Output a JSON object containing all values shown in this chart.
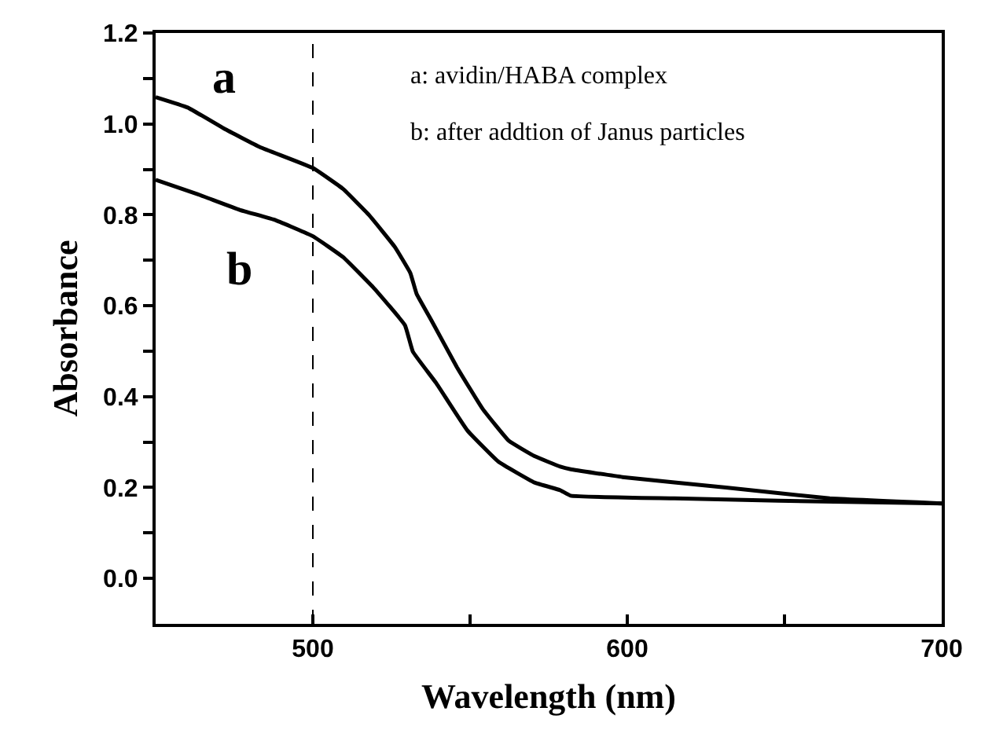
{
  "chart_data": {
    "type": "line",
    "xlabel": "Wavelength (nm)",
    "ylabel": "Absorbance",
    "xlim": [
      450,
      700
    ],
    "ylim": [
      -0.1,
      1.2
    ],
    "xticks": [
      {
        "value": 450,
        "label": null
      },
      500,
      {
        "value": 550,
        "label": null
      },
      600,
      {
        "value": 650,
        "label": null
      },
      700
    ],
    "yticks": [
      {
        "value": 0,
        "label": "0.0"
      },
      {
        "value": 0.1,
        "label": null
      },
      {
        "value": 0.2,
        "label": "0.2"
      },
      {
        "value": 0.3,
        "label": null
      },
      {
        "value": 0.4,
        "label": "0.4"
      },
      {
        "value": 0.5,
        "label": null
      },
      {
        "value": 0.6,
        "label": "0.6"
      },
      {
        "value": 0.7,
        "label": null
      },
      {
        "value": 0.8,
        "label": "0.8"
      },
      {
        "value": 0.9,
        "label": null
      },
      {
        "value": 1.0,
        "label": "1.0"
      },
      {
        "value": 1.1,
        "label": null
      },
      {
        "value": 1.2,
        "label": "1.2"
      }
    ],
    "legend": false,
    "marker": "none",
    "line_style": "solid",
    "ref_lines": [
      {
        "axis": "x",
        "value": 500,
        "label": null,
        "color": "#000000",
        "line_style": "dashed"
      }
    ],
    "annotations": [
      "a: avidin/HABA complex",
      "b: after addtion of Janus particles"
    ],
    "series": [
      {
        "name": "a",
        "color": "#000000",
        "x": [
          450,
          460.2,
          471.7,
          483.2,
          500,
          509.6,
          517.8,
          526,
          531,
          533,
          537.6,
          545.8,
          554,
          562.3,
          570.5,
          578.7,
          582,
          598.5,
          631.4,
          664.4,
          700
        ],
        "values": [
          1.059,
          1.036,
          0.99,
          0.949,
          0.903,
          0.857,
          0.8,
          0.73,
          0.672,
          0.626,
          0.569,
          0.465,
          0.373,
          0.303,
          0.269,
          0.246,
          0.24,
          0.223,
          0.2,
          0.176,
          0.165
        ]
      },
      {
        "name": "b",
        "color": "#000000",
        "x": [
          450,
          463.5,
          476.7,
          488.2,
          500,
          509.6,
          519.5,
          529.3,
          531.8,
          539.2,
          549.1,
          559,
          570.5,
          578.7,
          582,
          615,
          648,
          700
        ],
        "values": [
          0.877,
          0.845,
          0.811,
          0.788,
          0.753,
          0.707,
          0.638,
          0.557,
          0.499,
          0.43,
          0.326,
          0.257,
          0.211,
          0.194,
          0.182,
          0.176,
          0.171,
          0.165
        ]
      }
    ]
  }
}
